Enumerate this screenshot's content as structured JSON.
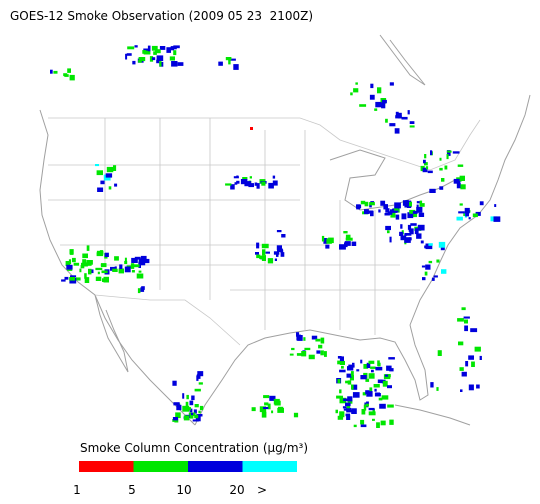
{
  "title": "GOES-12 Smoke Observation (2009 05 23  2100Z)",
  "legend": {
    "label": "Smoke Column Concentration (μg/m³)",
    "bins": [
      {
        "color": "#ff0000"
      },
      {
        "color": "#00e600"
      },
      {
        "color": "#0000dc"
      },
      {
        "color": "#00ffff"
      }
    ],
    "ticks": [
      "1",
      "5",
      "10",
      "20",
      ">"
    ]
  }
}
